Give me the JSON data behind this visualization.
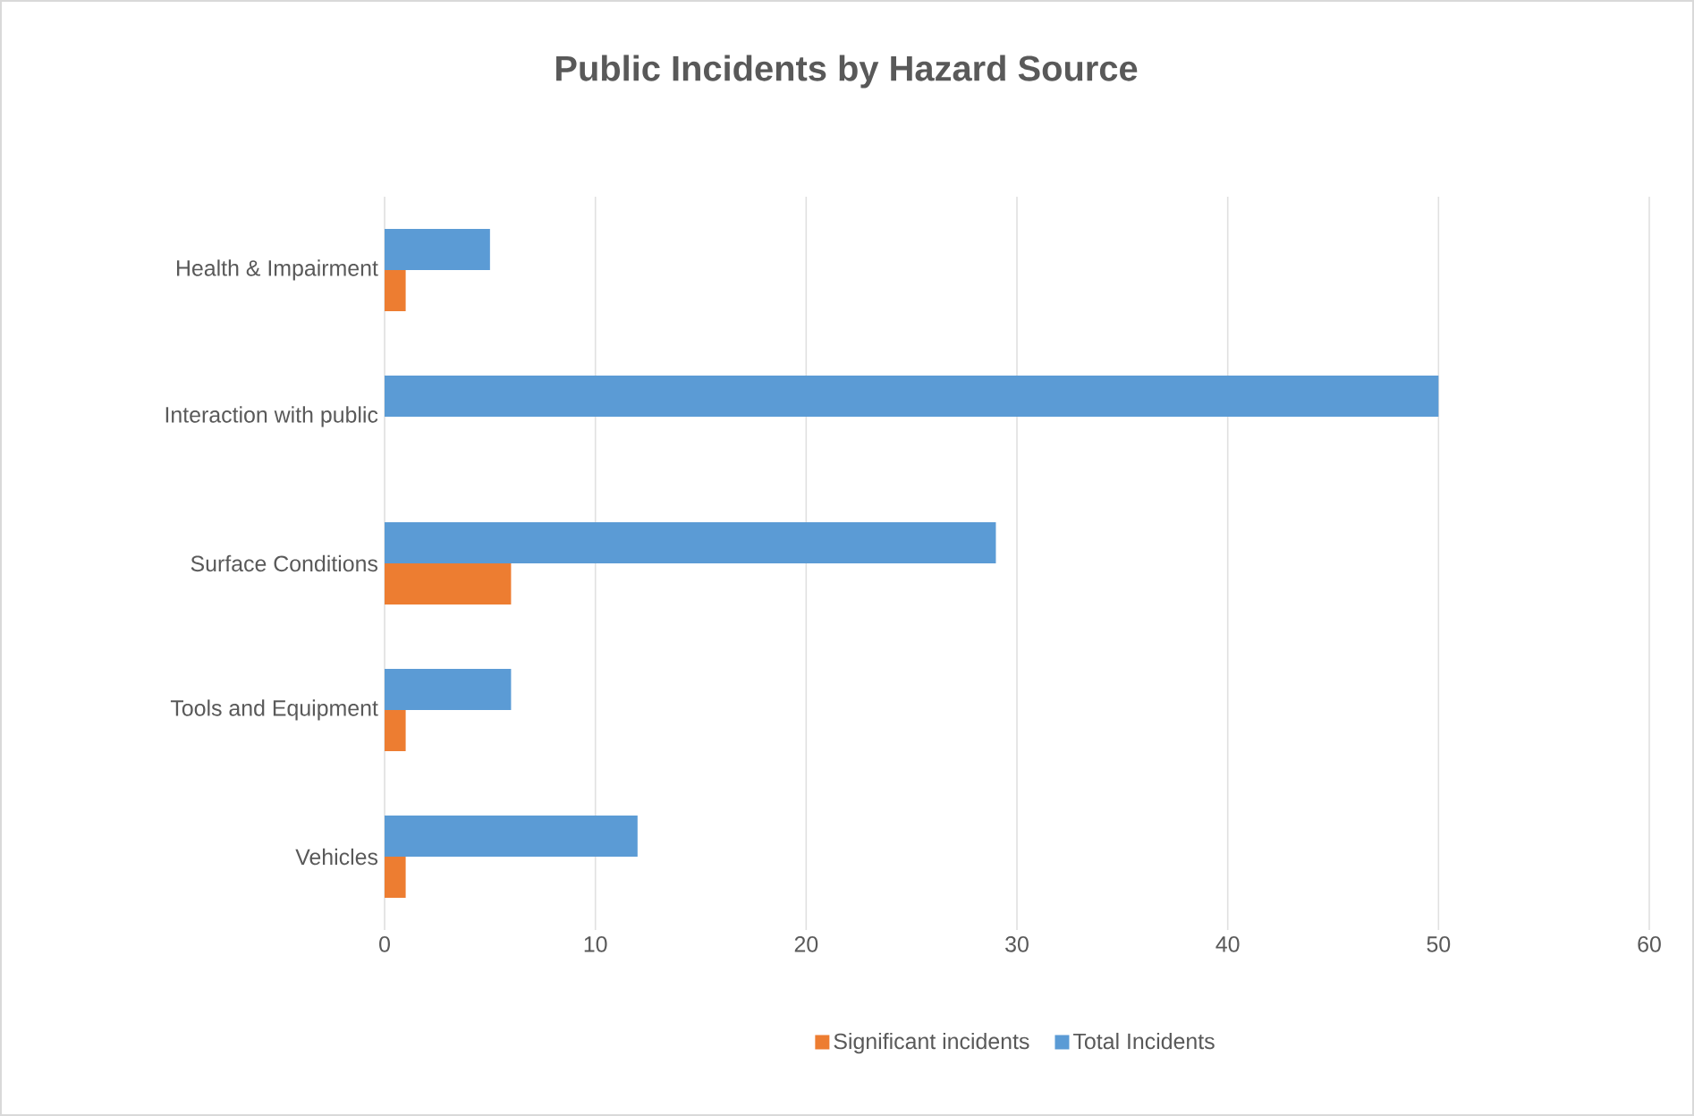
{
  "chart_data": {
    "type": "bar",
    "orientation": "horizontal",
    "title": "Public Incidents by Hazard Source",
    "categories": [
      "Health & Impairment",
      "Interaction with public",
      "Surface Conditions",
      "Tools and Equipment",
      "Vehicles"
    ],
    "series": [
      {
        "name": "Significant incidents",
        "color": "#ed7d31",
        "values": [
          1,
          0,
          6,
          1,
          1
        ]
      },
      {
        "name": "Total Incidents",
        "color": "#5b9bd5",
        "values": [
          5,
          50,
          29,
          6,
          12
        ]
      }
    ],
    "xlim": [
      0,
      60
    ],
    "xticks": [
      0,
      10,
      20,
      30,
      40,
      50,
      60
    ],
    "grid": "x",
    "legend": "bottom"
  }
}
